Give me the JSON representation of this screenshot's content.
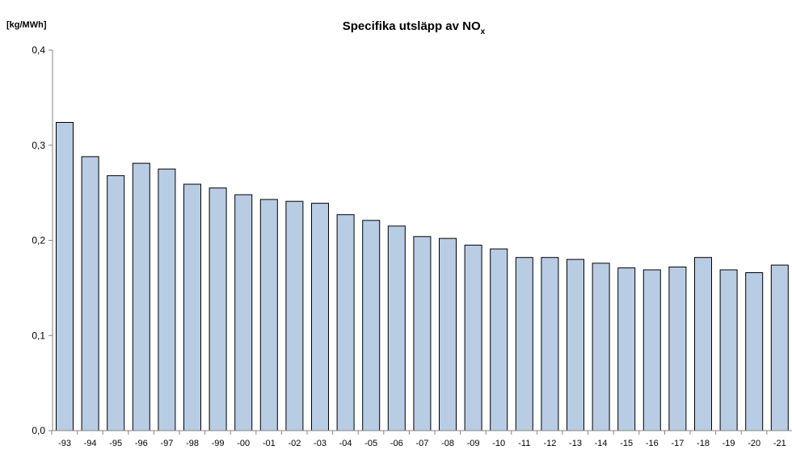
{
  "chart_data": {
    "type": "bar",
    "title": "Specifika utsläpp av NO",
    "title_subscript": "x",
    "ylabel": "[kg/MWh]",
    "xlabel": "",
    "ylim": [
      0,
      0.4
    ],
    "yticks": [
      "0,0",
      "0,1",
      "0,2",
      "0,3",
      "0,4"
    ],
    "categories": [
      "-93",
      "-94",
      "-95",
      "-96",
      "-97",
      "-98",
      "-99",
      "-00",
      "-01",
      "-02",
      "-03",
      "-04",
      "-05",
      "-06",
      "-07",
      "-08",
      "-09",
      "-10",
      "-11",
      "-12",
      "-13",
      "-14",
      "-15",
      "-16",
      "-17",
      "-18",
      "-19",
      "-20",
      "-21"
    ],
    "values": [
      0.324,
      0.288,
      0.268,
      0.281,
      0.275,
      0.259,
      0.255,
      0.248,
      0.243,
      0.241,
      0.239,
      0.227,
      0.221,
      0.215,
      0.204,
      0.202,
      0.195,
      0.191,
      0.182,
      0.182,
      0.18,
      0.176,
      0.171,
      0.169,
      0.172,
      0.182,
      0.169,
      0.166,
      0.174
    ],
    "grid": false,
    "legend": "none",
    "bar_color": "#b8cce4",
    "bar_edge_color": "#000000",
    "axis_color": "#868686"
  }
}
